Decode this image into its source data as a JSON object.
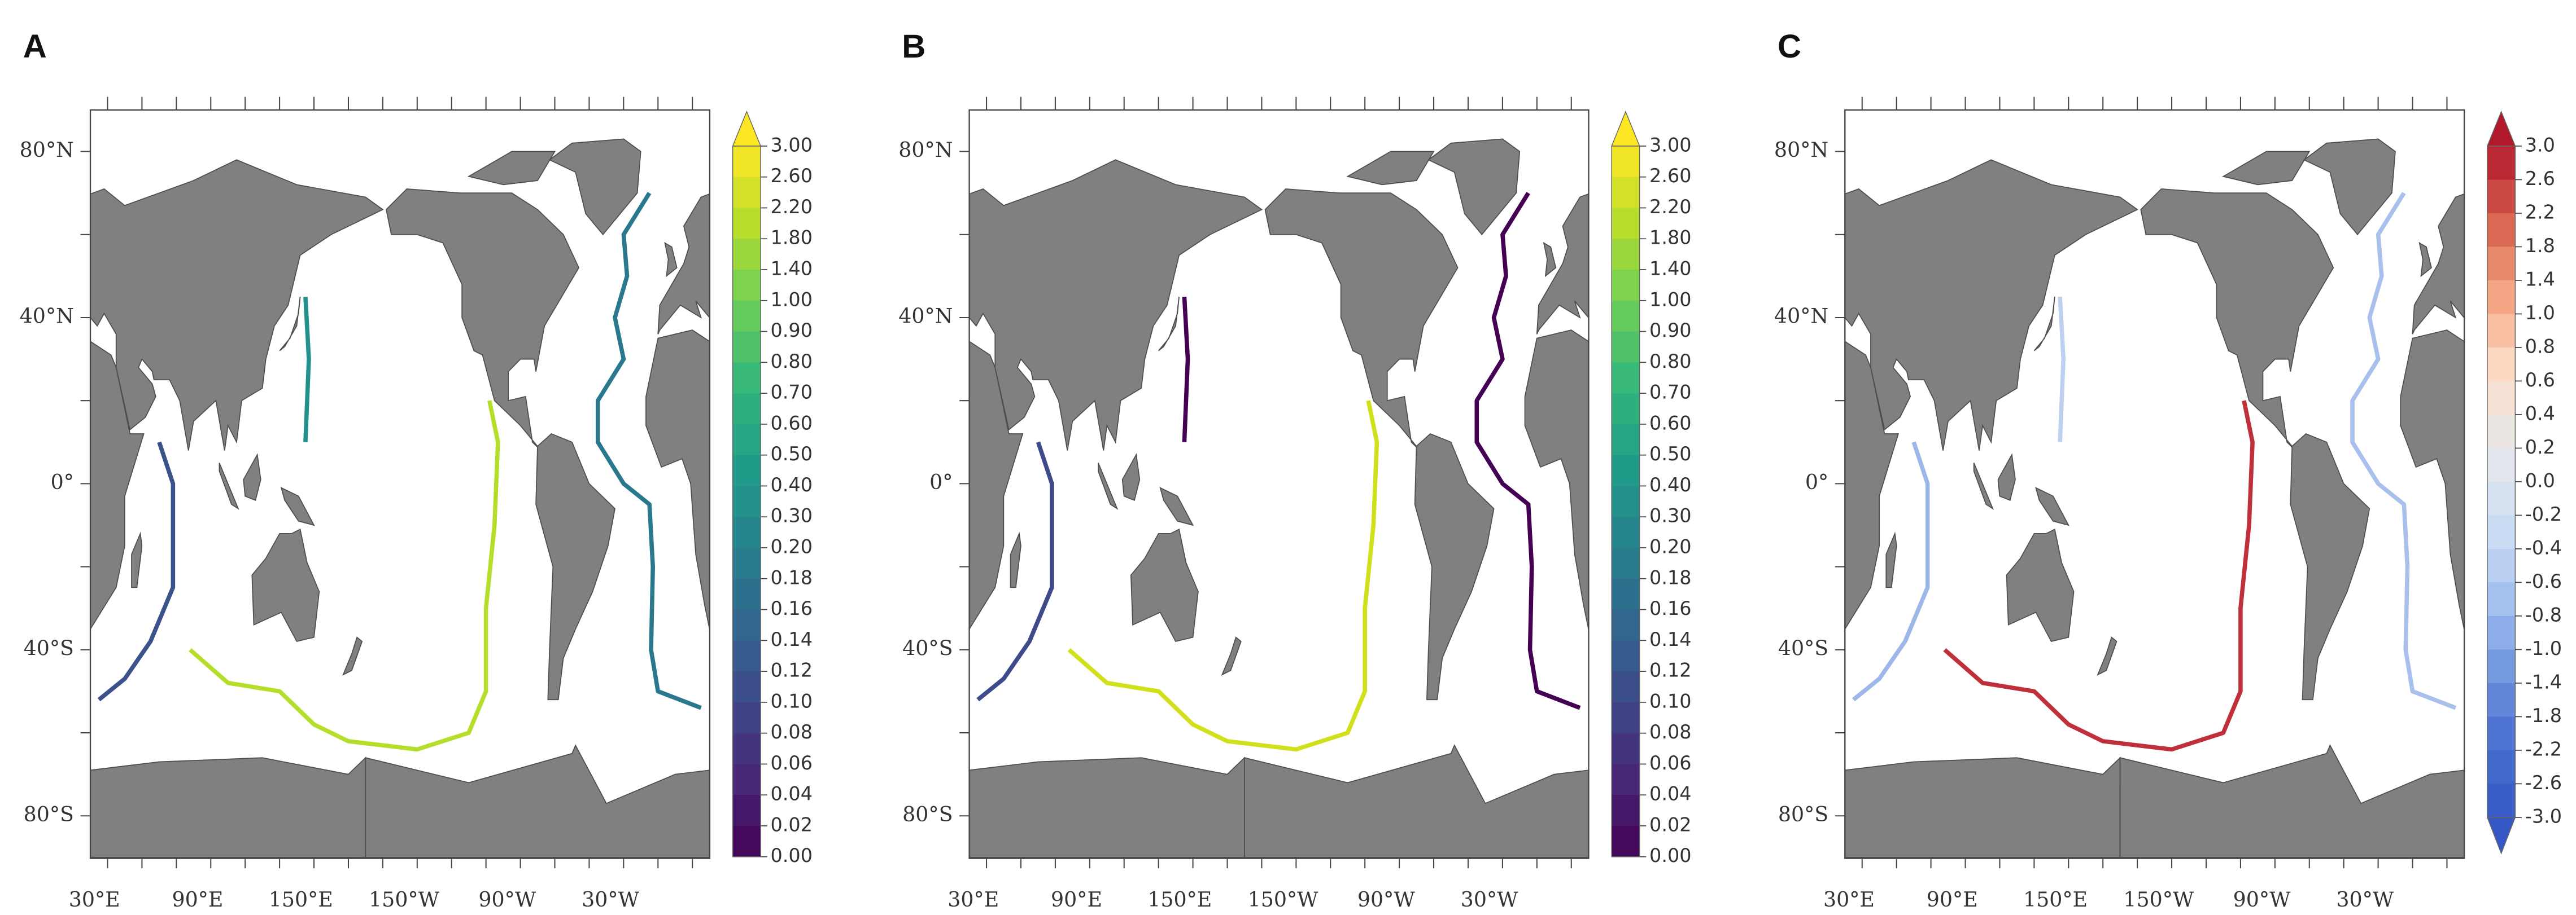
{
  "panels": [
    {
      "label": "A",
      "lat_labels": [
        "80°N",
        "40°N",
        "0°",
        "40°S",
        "80°S"
      ],
      "lon_labels": [
        "30°E",
        "90°E",
        "150°E",
        "150°W",
        "90°W",
        "30°W"
      ],
      "colorbar_labels": [
        "3.00",
        "2.60",
        "2.20",
        "1.80",
        "1.40",
        "1.00",
        "0.90",
        "0.80",
        "0.70",
        "0.60",
        "0.50",
        "0.40",
        "0.30",
        "0.20",
        "0.18",
        "0.16",
        "0.14",
        "0.12",
        "0.10",
        "0.08",
        "0.06",
        "0.04",
        "0.02",
        "0.00"
      ]
    },
    {
      "label": "B",
      "lat_labels": [
        "80°N",
        "40°N",
        "0°",
        "40°S",
        "80°S"
      ],
      "lon_labels": [
        "30°E",
        "90°E",
        "150°E",
        "150°W",
        "90°W",
        "30°W"
      ],
      "colorbar_labels": [
        "3.00",
        "2.60",
        "2.20",
        "1.80",
        "1.40",
        "1.00",
        "0.90",
        "0.80",
        "0.70",
        "0.60",
        "0.50",
        "0.40",
        "0.30",
        "0.20",
        "0.18",
        "0.16",
        "0.14",
        "0.12",
        "0.10",
        "0.08",
        "0.06",
        "0.04",
        "0.02",
        "0.00"
      ]
    },
    {
      "label": "C",
      "lat_labels": [
        "80°N",
        "40°N",
        "0°",
        "40°S",
        "80°S"
      ],
      "lon_labels": [
        "30°E",
        "90°E",
        "150°E",
        "150°W",
        "90°W",
        "30°W"
      ],
      "colorbar_labels": [
        "3.0",
        "2.6",
        "2.2",
        "1.8",
        "1.4",
        "1.0",
        "0.8",
        "0.6",
        "0.4",
        "0.2",
        "0.0",
        "-0.2",
        "-0.4",
        "-0.6",
        "-0.8",
        "-1.0",
        "-1.4",
        "-1.8",
        "-2.2",
        "-2.6",
        "-3.0"
      ]
    }
  ]
}
